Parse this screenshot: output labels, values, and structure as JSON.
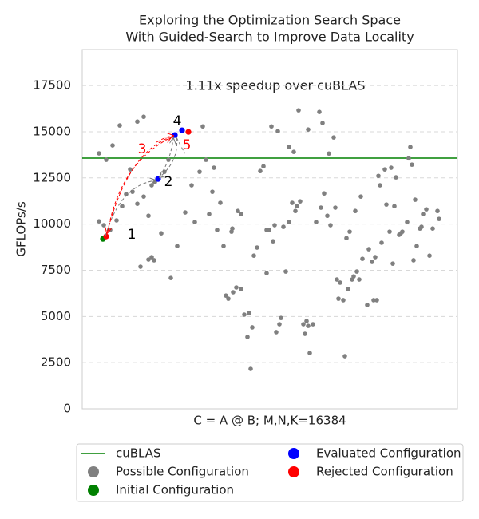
{
  "chart_data": {
    "type": "scatter",
    "title": [
      "Exploring the Optimization Search Space",
      "With Guided-Search to Improve Data Locality"
    ],
    "annotation": "1.11x speedup over cuBLAS",
    "xlabel": "C = A @ B; M,N,K=16384",
    "ylabel": "GFLOPs/s",
    "xlim": [
      0,
      470
    ],
    "ylim": [
      0,
      19450
    ],
    "yticks": [
      0,
      2500,
      5000,
      7500,
      10000,
      12500,
      15000,
      17500
    ],
    "grid": true,
    "legend": "bottom",
    "hlines": [
      {
        "name": "cuBLAS",
        "color": "#008000",
        "value": 13570
      }
    ],
    "series": [
      {
        "name": "Possible Configuration",
        "color": "#808080",
        "x": [
          21,
          30,
          38,
          47,
          77,
          69,
          21,
          27,
          35,
          43,
          50,
          55,
          60,
          63,
          69,
          77,
          83,
          87,
          91,
          73,
          83,
          87,
          90,
          99,
          103,
          108,
          111,
          119,
          129,
          137,
          141,
          147,
          151,
          155,
          159,
          163,
          165,
          169,
          173,
          177,
          180,
          183,
          187,
          188,
          189,
          193,
          195,
          199,
          199,
          203,
          207,
          209,
          211,
          213,
          215,
          219,
          223,
          227,
          231,
          231,
          234,
          237,
          239,
          241,
          243,
          245,
          247,
          249,
          252,
          255,
          259,
          259,
          263,
          265,
          267,
          269,
          271,
          273,
          277,
          279,
          281,
          283,
          283,
          285,
          289,
          293,
          297,
          299,
          301,
          303,
          307,
          309,
          311,
          315,
          317,
          319,
          321,
          323,
          327,
          329,
          331,
          333,
          335,
          338,
          340,
          342,
          344,
          347,
          349,
          351,
          357,
          359,
          363,
          367,
          369,
          365,
          371,
          373,
          375,
          379,
          381,
          385,
          387,
          389,
          391,
          393,
          397,
          399,
          401,
          407,
          409,
          411,
          413,
          415,
          417,
          419,
          423,
          425,
          427,
          431,
          435,
          439,
          445,
          447
        ],
        "values": [
          13830,
          13480,
          14260,
          15340,
          15810,
          15550,
          10150,
          9940,
          9680,
          10200,
          10970,
          11620,
          12960,
          11750,
          11100,
          11490,
          10450,
          12100,
          12270,
          7690,
          8080,
          8210,
          8040,
          9500,
          12830,
          13480,
          7080,
          8810,
          10630,
          12100,
          10110,
          12830,
          15290,
          13480,
          10540,
          11750,
          13050,
          9680,
          11150,
          8810,
          6130,
          5960,
          9590,
          9760,
          6310,
          6570,
          10710,
          10540,
          6480,
          5100,
          3890,
          5180,
          2160,
          4410,
          8290,
          8730,
          12870,
          13130,
          7340,
          9680,
          9680,
          15290,
          9070,
          9940,
          4150,
          15030,
          4580,
          4920,
          9850,
          7430,
          14170,
          10110,
          11150,
          13910,
          10710,
          10970,
          16160,
          11230,
          4580,
          4060,
          4750,
          4490,
          15120,
          3020,
          4580,
          10110,
          16070,
          10890,
          15470,
          11660,
          10450,
          13820,
          9940,
          14690,
          10890,
          7000,
          5960,
          6830,
          5880,
          2850,
          9240,
          6480,
          9590,
          7000,
          7170,
          10710,
          7430,
          7000,
          11490,
          8120,
          5620,
          8640,
          7950,
          8210,
          5880,
          5880,
          12610,
          12100,
          8990,
          12960,
          11060,
          9590,
          13050,
          7860,
          10970,
          12530,
          9420,
          9500,
          9590,
          10110,
          13560,
          14170,
          13220,
          8040,
          11320,
          8810,
          9760,
          9850,
          10540,
          10800,
          8290,
          9760,
          10710,
          10280
        ]
      },
      {
        "name": "Initial Configuration",
        "color": "#008000",
        "x": [
          26
        ],
        "values": [
          9200
        ]
      },
      {
        "name": "Evaluated Configuration",
        "color": "#0000ff",
        "x": [
          95,
          116,
          125
        ],
        "values": [
          12440,
          14820,
          15080
        ]
      },
      {
        "name": "Rejected Configuration",
        "color": "#ff0000",
        "x": [
          30,
          133
        ],
        "values": [
          9330,
          14990
        ]
      }
    ],
    "steps": [
      {
        "label": "1",
        "color": "#000000"
      },
      {
        "label": "2",
        "color": "#000000"
      },
      {
        "label": "3",
        "color": "#ff0000"
      },
      {
        "label": "4",
        "color": "#000000"
      },
      {
        "label": "5",
        "color": "#ff0000"
      }
    ]
  }
}
